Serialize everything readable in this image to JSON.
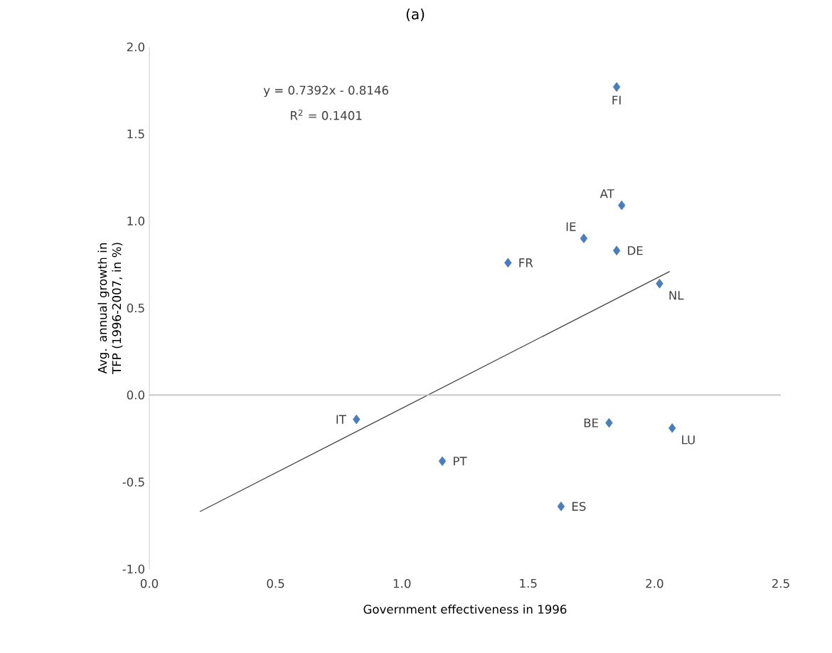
{
  "chart_data": {
    "type": "scatter",
    "title": "(a)",
    "xlabel": "Government effectiveness in 1996",
    "ylabel": "Avg. annual growth in TFP (1996-2007, in %)",
    "xlim": [
      0,
      2.5
    ],
    "xticks": [
      {
        "value": 0,
        "label": "0.0"
      },
      {
        "value": 0.5,
        "label": "0.5"
      },
      {
        "value": 1,
        "label": "1.0"
      },
      {
        "value": 1.5,
        "label": "1.5"
      },
      {
        "value": 2,
        "label": "2.0"
      },
      {
        "value": 2.5,
        "label": "2.5"
      }
    ],
    "ylim": [
      -1,
      2
    ],
    "yticks": [
      {
        "value": -1,
        "label": "-1.0"
      },
      {
        "value": -0.5,
        "label": "-0.5"
      },
      {
        "value": 0,
        "label": "0.0"
      },
      {
        "value": 0.5,
        "label": "0.5"
      },
      {
        "value": 1,
        "label": "1.0"
      },
      {
        "value": 1.5,
        "label": "1.5"
      },
      {
        "value": 2,
        "label": "2.0"
      }
    ],
    "grid": false,
    "marker": "diamond",
    "ref_lines": [
      {
        "axis": "y",
        "value": 0,
        "color": "#bfbfbf"
      }
    ],
    "series": [
      {
        "color": "#4a7ebb",
        "x": [
          1.85,
          1.87,
          1.72,
          1.85,
          1.42,
          2.02,
          0.82,
          1.82,
          2.07,
          1.16,
          1.63
        ],
        "values": [
          1.77,
          1.09,
          0.9,
          0.83,
          0.76,
          0.64,
          -0.14,
          -0.16,
          -0.19,
          -0.38,
          -0.64
        ]
      },
      {
        "type": "line",
        "marker": "none",
        "color": "#404040",
        "x": [
          0.2,
          2.06
        ],
        "values": [
          -0.67,
          0.71
        ]
      }
    ],
    "annotations": [
      "y = 0.7392x - 0.8146",
      "R$^{2}$ = 0.1401",
      {
        "text": "FI",
        "x": 1.85,
        "y": 1.77
      },
      {
        "text": "AT",
        "x": 1.87,
        "y": 1.09
      },
      {
        "text": "IE",
        "x": 1.72,
        "y": 0.9
      },
      {
        "text": "DE",
        "x": 1.85,
        "y": 0.83
      },
      {
        "text": "FR",
        "x": 1.42,
        "y": 0.76
      },
      {
        "text": "NL",
        "x": 2.02,
        "y": 0.64
      },
      {
        "text": "IT",
        "x": 0.82,
        "y": -0.14
      },
      {
        "text": "BE",
        "x": 1.82,
        "y": -0.16
      },
      {
        "text": "LU",
        "x": 2.07,
        "y": -0.19
      },
      {
        "text": "PT",
        "x": 1.16,
        "y": -0.38
      },
      {
        "text": "ES",
        "x": 1.63,
        "y": -0.64
      }
    ]
  }
}
